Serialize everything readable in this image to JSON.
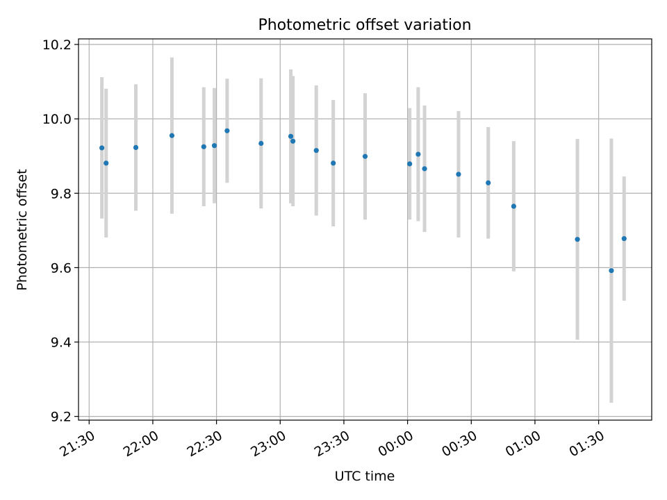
{
  "chart_data": {
    "type": "scatter",
    "title": "Photometric offset variation",
    "xlabel": "UTC time",
    "ylabel": "Photometric offset",
    "x_axis": {
      "kind": "time",
      "start_date": "2000-01-01",
      "range": [
        "21:25",
        "01:55 (+1 day)"
      ],
      "ticks": [
        {
          "label": "21:30",
          "time": "21:30"
        },
        {
          "label": "22:00",
          "time": "22:00"
        },
        {
          "label": "22:30",
          "time": "22:30"
        },
        {
          "label": "23:00",
          "time": "23:00"
        },
        {
          "label": "23:30",
          "time": "23:30"
        },
        {
          "label": "00:00",
          "time": "00:00 (+1 day)"
        },
        {
          "label": "00:30",
          "time": "00:30 (+1 day)"
        },
        {
          "label": "01:00",
          "time": "01:00 (+1 day)"
        },
        {
          "label": "01:30",
          "time": "01:30 (+1 day)"
        }
      ]
    },
    "y_axis": {
      "range": [
        9.19,
        10.215
      ],
      "ticks": [
        "9.2",
        "9.4",
        "9.6",
        "9.8",
        "10.0",
        "10.2"
      ]
    },
    "grid": true,
    "colors": {
      "point": "#1f77b4",
      "errorbar": "#d3d3d3",
      "grid": "#b0b0b0"
    },
    "points": [
      {
        "time": "21:36",
        "value": 9.922,
        "err": 0.19
      },
      {
        "time": "21:38",
        "value": 9.881,
        "err": 0.2
      },
      {
        "time": "21:52",
        "value": 9.923,
        "err": 0.17
      },
      {
        "time": "22:09",
        "value": 9.955,
        "err": 0.21
      },
      {
        "time": "22:24",
        "value": 9.925,
        "err": 0.16
      },
      {
        "time": "22:29",
        "value": 9.928,
        "err": 0.155
      },
      {
        "time": "22:35",
        "value": 9.968,
        "err": 0.14
      },
      {
        "time": "22:51",
        "value": 9.934,
        "err": 0.175
      },
      {
        "time": "23:05",
        "value": 9.953,
        "err": 0.18
      },
      {
        "time": "23:06",
        "value": 9.94,
        "err": 0.175
      },
      {
        "time": "23:17",
        "value": 9.915,
        "err": 0.175
      },
      {
        "time": "23:25",
        "value": 9.881,
        "err": 0.17
      },
      {
        "time": "23:40",
        "value": 9.899,
        "err": 0.17
      },
      {
        "time": "00:01 (+1 day)",
        "value": 9.879,
        "err": 0.15
      },
      {
        "time": "00:05 (+1 day)",
        "value": 9.905,
        "err": 0.18
      },
      {
        "time": "00:08 (+1 day)",
        "value": 9.866,
        "err": 0.17
      },
      {
        "time": "00:24 (+1 day)",
        "value": 9.851,
        "err": 0.17
      },
      {
        "time": "00:38 (+1 day)",
        "value": 9.828,
        "err": 0.15
      },
      {
        "time": "00:50 (+1 day)",
        "value": 9.765,
        "err": 0.175
      },
      {
        "time": "01:20 (+1 day)",
        "value": 9.676,
        "err": 0.27
      },
      {
        "time": "01:36 (+1 day)",
        "value": 9.592,
        "err": 0.355
      },
      {
        "time": "01:42 (+1 day)",
        "value": 9.678,
        "err": 0.167
      }
    ]
  }
}
